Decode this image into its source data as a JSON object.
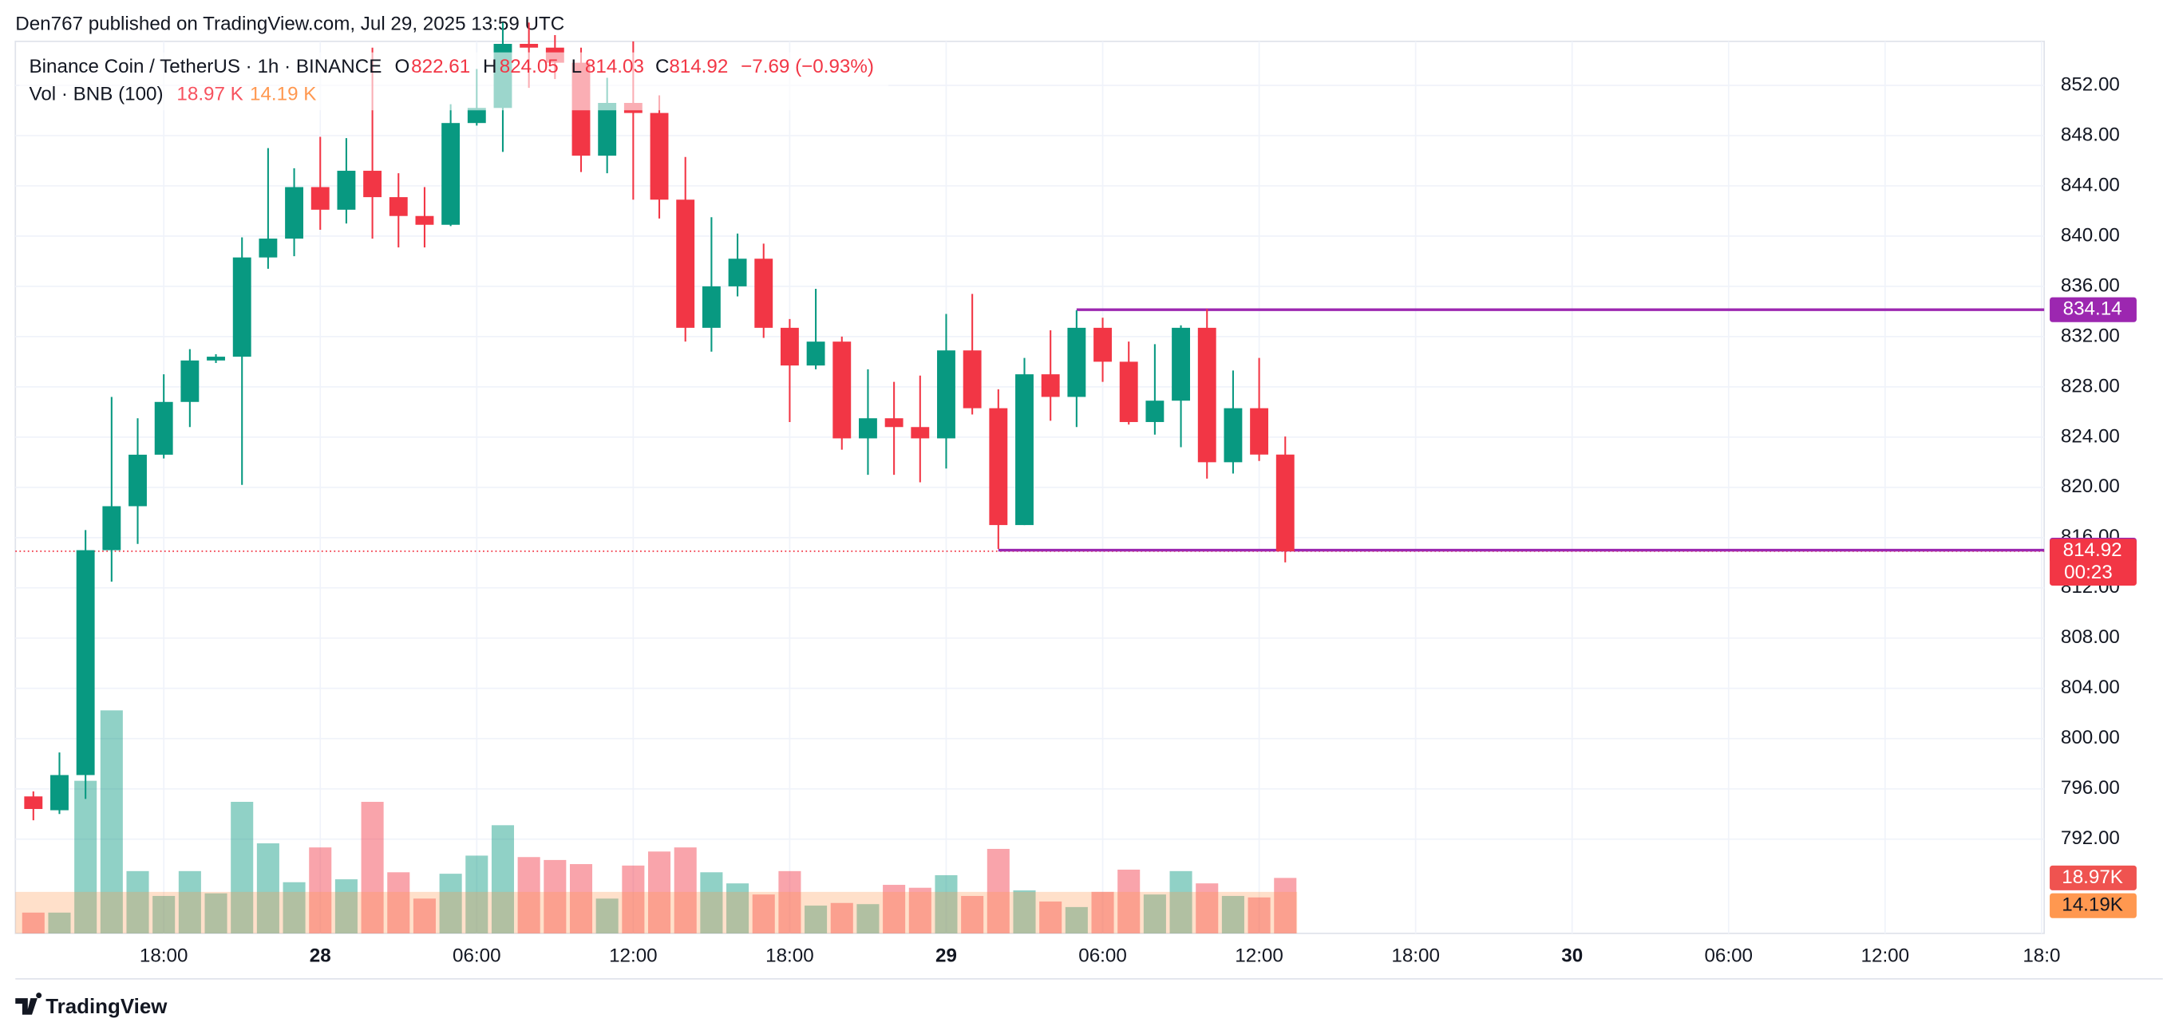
{
  "header": {
    "publisher": "Den767 published on TradingView.com, Jul 29, 2025 13:59 UTC"
  },
  "chart_data": {
    "type": "candlestick",
    "symbol": "Binance Coin / TetherUS · 1h · BINANCE",
    "legend": {
      "o_label": "O",
      "open": 822.61,
      "h_label": "H",
      "high": 824.05,
      "l_label": "L",
      "low": 814.03,
      "c_label": "C",
      "close": 814.92,
      "change_label": "−7.69 (−0.93%)"
    },
    "x": [
      0,
      1,
      2,
      3,
      4,
      5,
      6,
      7,
      8,
      9,
      10,
      11,
      12,
      13,
      14,
      15,
      16,
      17,
      18,
      19,
      20,
      21,
      22,
      23,
      24,
      25,
      26,
      27,
      28,
      29,
      30,
      31,
      32,
      33,
      34,
      35,
      36,
      37,
      38,
      39,
      40,
      41,
      42,
      43,
      44,
      45,
      46,
      47,
      48
    ],
    "open": [
      795.4,
      794.3,
      797.1,
      815,
      818.5,
      822.6,
      826.8,
      830.1,
      830.4,
      838.3,
      839.8,
      843.9,
      842.1,
      845.2,
      843.1,
      841.6,
      840.9,
      849,
      850.2,
      855.3,
      855,
      853.8,
      846.4,
      850.6,
      849.8,
      842.9,
      832.7,
      836,
      838.2,
      832.7,
      829.7,
      831.6,
      823.9,
      825.5,
      824.8,
      823.9,
      830.9,
      826.3,
      817,
      829,
      827.2,
      832.7,
      830,
      825.2,
      826.9,
      832.7,
      822,
      826.3,
      822.61
    ],
    "high": [
      795.8,
      798.9,
      816.6,
      827.2,
      825.5,
      829,
      831,
      830.6,
      839.9,
      847,
      845.4,
      847.9,
      847.8,
      855,
      845,
      843.9,
      850.5,
      853.3,
      857,
      857,
      856,
      855,
      852.6,
      855.5,
      851.2,
      846.3,
      841.5,
      840.2,
      839.4,
      833.4,
      835.8,
      832,
      829.4,
      828.4,
      828.9,
      833.8,
      835.4,
      827.8,
      830.3,
      832.5,
      834.1,
      833.5,
      831.6,
      831.4,
      832.9,
      834.2,
      829.3,
      830.3,
      824.05
    ],
    "low": [
      793.5,
      794,
      795.2,
      812.5,
      815.5,
      822.3,
      824.8,
      829.9,
      820.2,
      837.4,
      838.4,
      840.5,
      841,
      839.8,
      839.1,
      839.1,
      840.8,
      848.8,
      846.7,
      851.8,
      852.5,
      845.1,
      845,
      842.9,
      841.4,
      831.6,
      830.8,
      835.2,
      831.9,
      825.2,
      829.4,
      823,
      821,
      821,
      820.4,
      821.5,
      825.8,
      815.1,
      817,
      825.3,
      824.8,
      828.4,
      825,
      824.2,
      823.2,
      820.7,
      821.1,
      822.1,
      814.03
    ],
    "close": [
      794.4,
      797.1,
      815,
      818.5,
      822.6,
      826.8,
      830.1,
      830.4,
      838.3,
      839.8,
      843.9,
      842.1,
      845.2,
      843.1,
      841.6,
      840.9,
      849,
      850.2,
      855.3,
      855,
      853.8,
      846.4,
      850.6,
      849.8,
      842.9,
      832.7,
      836,
      838.2,
      832.7,
      829.7,
      831.6,
      823.9,
      825.5,
      824.8,
      823.9,
      830.9,
      826.3,
      817,
      829,
      827.2,
      832.7,
      830,
      825.2,
      826.9,
      832.7,
      822,
      826.3,
      822.61,
      814.92
    ],
    "up_color": "#089981",
    "down_color": "#f23645",
    "grid": true,
    "xlim": [
      -0.69,
      77.1
    ],
    "xticks": [
      {
        "value": 5,
        "label": "18:00"
      },
      {
        "value": 11,
        "label": "28"
      },
      {
        "value": 17,
        "label": "06:00"
      },
      {
        "value": 23,
        "label": "12:00"
      },
      {
        "value": 29,
        "label": "18:00"
      },
      {
        "value": 35,
        "label": "29"
      },
      {
        "value": 41,
        "label": "06:00"
      },
      {
        "value": 47,
        "label": "12:00"
      },
      {
        "value": 53,
        "label": "18:00"
      },
      {
        "value": 59,
        "label": "30"
      },
      {
        "value": 65,
        "label": "06:00"
      },
      {
        "value": 71,
        "label": "12:00"
      },
      {
        "value": 77,
        "label": "18:0"
      }
    ],
    "ylim": [
      784.5,
      855.5
    ],
    "yticks": [
      {
        "value": 792,
        "label": "792.00"
      },
      {
        "value": 796,
        "label": "796.00"
      },
      {
        "value": 800,
        "label": "800.00"
      },
      {
        "value": 804,
        "label": "804.00"
      },
      {
        "value": 808,
        "label": "808.00"
      },
      {
        "value": 812,
        "label": "812.00"
      },
      {
        "value": 816,
        "label": "816.00"
      },
      {
        "value": 820,
        "label": "820.00"
      },
      {
        "value": 824,
        "label": "824.00"
      },
      {
        "value": 828,
        "label": "828.00"
      },
      {
        "value": 832,
        "label": "832.00"
      },
      {
        "value": 836,
        "label": "836.00"
      },
      {
        "value": 840,
        "label": "840.00"
      },
      {
        "value": 844,
        "label": "844.00"
      },
      {
        "value": 848,
        "label": "848.00"
      },
      {
        "value": 852,
        "label": "852.00"
      }
    ],
    "volume": {
      "name": "Vol · BNB (100)",
      "values": [
        7.1,
        7.1,
        52.2,
        76.3,
        21.3,
        12.8,
        21.3,
        13.7,
        45,
        30.8,
        17.5,
        29.4,
        18.5,
        45,
        20.9,
        11.9,
        20.4,
        26.6,
        37,
        26.1,
        25.1,
        23.7,
        11.9,
        23.2,
        28,
        29.4,
        20.9,
        17.1,
        13.3,
        21.3,
        9.5,
        10.4,
        10,
        16.6,
        15.6,
        19.9,
        12.8,
        28.9,
        14.7,
        10.9,
        9,
        14.2,
        21.8,
        13.3,
        21.3,
        17.1,
        12.8,
        12.3,
        18.97
      ],
      "last_label": "18.97 K",
      "last_axis_label": "18.97K",
      "ma": 14.19,
      "ma_label": "14.19 K",
      "ma_axis_label": "14.19K",
      "ma_color": "#ff9850"
    },
    "price_lines": [
      {
        "value": 834.14,
        "label": "834.14",
        "start": 40,
        "color": "#9c27b0"
      },
      {
        "value": 815,
        "label": "815.00",
        "start": 37,
        "color": "#9c27b0"
      }
    ],
    "last_price": {
      "value": 814.92,
      "label": "814.92",
      "countdown": "00:23"
    }
  },
  "footer": {
    "brand": "TradingView"
  }
}
